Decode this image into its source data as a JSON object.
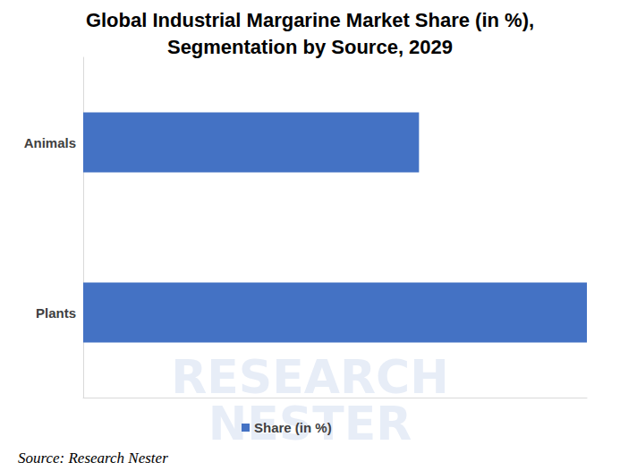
{
  "chart_data": {
    "type": "bar",
    "title": "Global Industrial Margarine Market Share (in %),\nSegmentation by Source, 2029",
    "orientation": "horizontal",
    "categories": [
      "Animals",
      "Plants"
    ],
    "series": [
      {
        "name": "Share (in %)",
        "color": "#4472c4",
        "values": [
          40,
          60
        ]
      }
    ],
    "xlim": [
      0,
      60
    ],
    "tick_labels": "y",
    "grid": false,
    "legend": "bottom",
    "source": "Source: Research Nester",
    "watermark": [
      "RESEARCH",
      "NESTER"
    ]
  }
}
